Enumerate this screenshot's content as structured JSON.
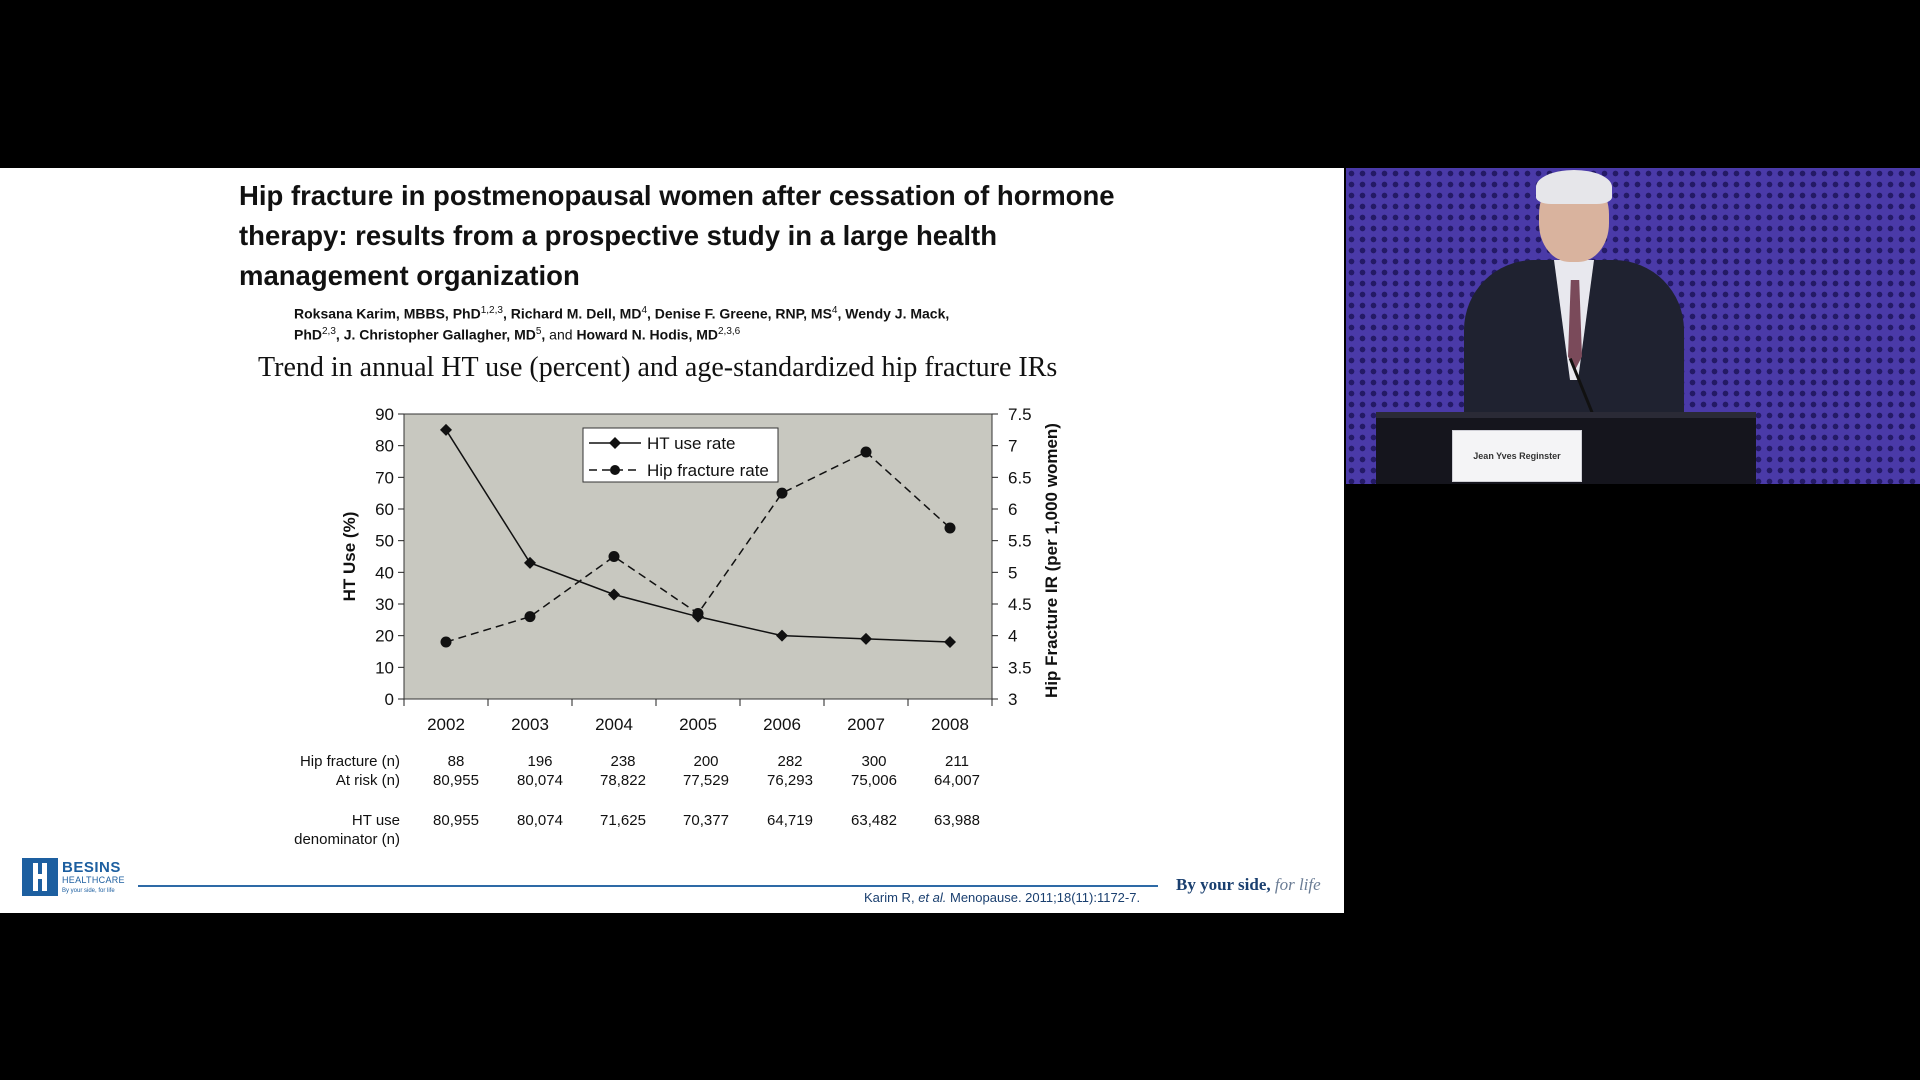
{
  "slide": {
    "paper_title": "Hip fracture in postmenopausal women after cessation of hormone therapy: results from a prospective study in a large health management organization",
    "authors": [
      {
        "name": "Roksana Karim, MBBS, PhD",
        "sup": "1,2,3"
      },
      {
        "name": "Richard M. Dell, MD",
        "sup": "4"
      },
      {
        "name": "Denise F. Greene, RNP, MS",
        "sup": "4"
      },
      {
        "name": "Wendy J. Mack, PhD",
        "sup": "2,3"
      },
      {
        "name": "J. Christopher Gallagher, MD",
        "sup": "5"
      },
      {
        "name": "Howard N. Hodis, MD",
        "sup": "2,3,6"
      }
    ],
    "authors_and": "and",
    "chart_caption": "Trend in annual HT use (percent) and age-standardized hip fracture IRs",
    "citation": {
      "authors": "Karim R,",
      "etal": "et al.",
      "ref": "Menopause. 2011;18(11):1172-7."
    },
    "logo": {
      "name": "BESINS",
      "sub": "HEALTHCARE",
      "tag": "By your side, for life"
    },
    "tagline": {
      "main": "By your side,",
      "script": "for life"
    }
  },
  "chart_data": {
    "type": "line",
    "title": "Trend in annual HT use (percent) and age-standardized hip fracture IRs",
    "categories": [
      "2002",
      "2003",
      "2004",
      "2005",
      "2006",
      "2007",
      "2008"
    ],
    "series": [
      {
        "name": "HT use rate",
        "axis": "left",
        "style": "solid",
        "marker": "diamond",
        "values": [
          85,
          43,
          33,
          26,
          20,
          19,
          18
        ]
      },
      {
        "name": "Hip fracture rate",
        "axis": "right",
        "style": "dashed",
        "marker": "circle",
        "values": [
          3.9,
          4.3,
          5.25,
          4.35,
          6.25,
          6.9,
          5.7
        ]
      }
    ],
    "ylabel": "HT Use (%)",
    "ylim": [
      0,
      90
    ],
    "yticks": [
      "0",
      "10",
      "20",
      "30",
      "40",
      "50",
      "60",
      "70",
      "80",
      "90"
    ],
    "y2label": "Hip Fracture IR (per 1,000 women)",
    "y2lim": [
      3,
      7.5
    ],
    "y2ticks": [
      "3",
      "3.5",
      "4",
      "4.5",
      "5",
      "5.5",
      "6",
      "6.5",
      "7",
      "7.5"
    ],
    "legend_position": "top-center",
    "plot_background": "#c8c8c0",
    "table": {
      "row_labels": [
        {
          "key": "hip",
          "label": "Hip fracture (n)"
        },
        {
          "key": "risk",
          "label": "At risk (n)"
        },
        {
          "key": "ht1",
          "label": "HT use"
        },
        {
          "key": "ht2",
          "label": "denominator (n)"
        }
      ],
      "hip_fracture_n": [
        "88",
        "196",
        "238",
        "200",
        "282",
        "300",
        "211"
      ],
      "at_risk_n": [
        "80,955",
        "80,074",
        "78,822",
        "77,529",
        "76,293",
        "75,006",
        "64,007"
      ],
      "ht_use_denominator_n": [
        "80,955",
        "80,074",
        "71,625",
        "70,377",
        "64,719",
        "63,482",
        "63,988"
      ]
    }
  },
  "video": {
    "name_card": "Jean Yves Reginster",
    "accent": "#4a3aa8"
  }
}
